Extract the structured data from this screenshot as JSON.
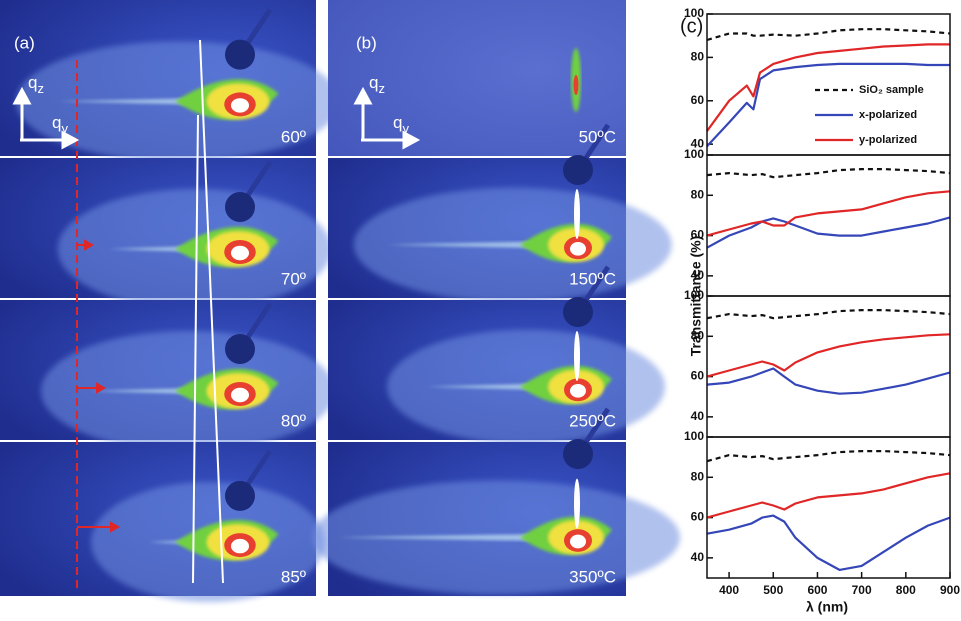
{
  "panels": {
    "a": {
      "label": "(a)",
      "axis_labels": [
        {
          "main": "q",
          "sub": "z"
        },
        {
          "main": "q",
          "sub": "y"
        }
      ],
      "rows": [
        "60º",
        "70º",
        "80º",
        "85º"
      ]
    },
    "b": {
      "label": "(b)",
      "axis_labels": [
        {
          "main": "q",
          "sub": "z"
        },
        {
          "main": "q",
          "sub": "y"
        }
      ],
      "rows": [
        "50ºC",
        "150ºC",
        "250ºC",
        "350ºC"
      ]
    },
    "c": {
      "label": "(c)"
    }
  },
  "shared_axes": {
    "xlabel": "λ (nm)",
    "ylabel": "Transmittance (%)"
  },
  "chart_data": [
    {
      "type": "line",
      "x": [
        350,
        400,
        440,
        455,
        470,
        500,
        550,
        600,
        650,
        700,
        750,
        800,
        850,
        900
      ],
      "xlim": [
        350,
        900
      ],
      "ylim": [
        35,
        100
      ],
      "yticks": [
        40,
        60,
        80,
        100
      ],
      "legend": "right",
      "series": [
        {
          "name": "SiO₂ sample",
          "color": "#111111",
          "dash": true,
          "values": [
            88,
            91,
            91,
            90,
            90,
            90.5,
            90,
            91,
            92.5,
            93,
            93,
            92.5,
            92,
            91
          ]
        },
        {
          "name": "x-polarized",
          "color": "#3546b8",
          "values": [
            39,
            50,
            59,
            56,
            70,
            74,
            75.5,
            76.5,
            77,
            77,
            77,
            77,
            76.5,
            76.5
          ]
        },
        {
          "name": "y-polarized",
          "color": "#e02626",
          "values": [
            46,
            60,
            67,
            62,
            73,
            77,
            80,
            82,
            83,
            84,
            85,
            85.5,
            86,
            86
          ]
        }
      ]
    },
    {
      "type": "line",
      "x": [
        350,
        400,
        450,
        475,
        500,
        525,
        550,
        600,
        650,
        700,
        750,
        800,
        850,
        900
      ],
      "xlim": [
        350,
        900
      ],
      "ylim": [
        30,
        100
      ],
      "yticks": [
        40,
        60,
        80,
        100
      ],
      "series": [
        {
          "color": "#111111",
          "dash": true,
          "values": [
            90,
            91,
            90,
            90.5,
            89,
            89.5,
            90,
            91,
            92.5,
            93,
            93,
            92.5,
            92,
            91
          ]
        },
        {
          "color": "#3546b8",
          "values": [
            54,
            60,
            64,
            67,
            68.5,
            67,
            65,
            61,
            60,
            60,
            62,
            64,
            66,
            69
          ]
        },
        {
          "color": "#e02626",
          "values": [
            60,
            63,
            66,
            67,
            65,
            65,
            69,
            71,
            72,
            73,
            76,
            79,
            81,
            82
          ]
        }
      ]
    },
    {
      "type": "line",
      "x": [
        350,
        400,
        450,
        475,
        500,
        525,
        550,
        600,
        650,
        700,
        750,
        800,
        850,
        900
      ],
      "xlim": [
        350,
        900
      ],
      "ylim": [
        30,
        100
      ],
      "yticks": [
        40,
        60,
        80,
        100
      ],
      "series": [
        {
          "color": "#111111",
          "dash": true,
          "values": [
            89,
            91,
            90,
            90.5,
            89,
            89.5,
            90,
            91,
            92.5,
            93,
            93,
            92.5,
            92,
            91
          ]
        },
        {
          "color": "#3546b8",
          "values": [
            56,
            57,
            60,
            62,
            64,
            60,
            56,
            53,
            51.5,
            52,
            54,
            56,
            59,
            62
          ]
        },
        {
          "color": "#e02626",
          "values": [
            60,
            63,
            66,
            67.5,
            66,
            63,
            67,
            72,
            75,
            77,
            78.5,
            79.5,
            80.5,
            81
          ]
        }
      ]
    },
    {
      "type": "line",
      "x": [
        350,
        400,
        450,
        475,
        500,
        525,
        550,
        600,
        650,
        700,
        750,
        800,
        850,
        900
      ],
      "xlim": [
        350,
        900
      ],
      "ylim": [
        30,
        100
      ],
      "yticks": [
        40,
        60,
        80,
        100
      ],
      "xticks": [
        400,
        500,
        600,
        700,
        800,
        900
      ],
      "series": [
        {
          "color": "#111111",
          "dash": true,
          "values": [
            88,
            91,
            90,
            90.5,
            89,
            89.5,
            90,
            91,
            92.5,
            93,
            93,
            92.5,
            92,
            91
          ]
        },
        {
          "color": "#3546b8",
          "values": [
            52,
            54,
            57,
            60,
            61,
            58,
            50,
            40,
            34,
            36,
            43,
            50,
            56,
            60
          ]
        },
        {
          "color": "#e02626",
          "values": [
            60,
            63,
            66,
            67.5,
            66,
            64,
            67,
            70,
            71,
            72,
            74,
            77,
            80,
            82
          ]
        }
      ]
    }
  ]
}
